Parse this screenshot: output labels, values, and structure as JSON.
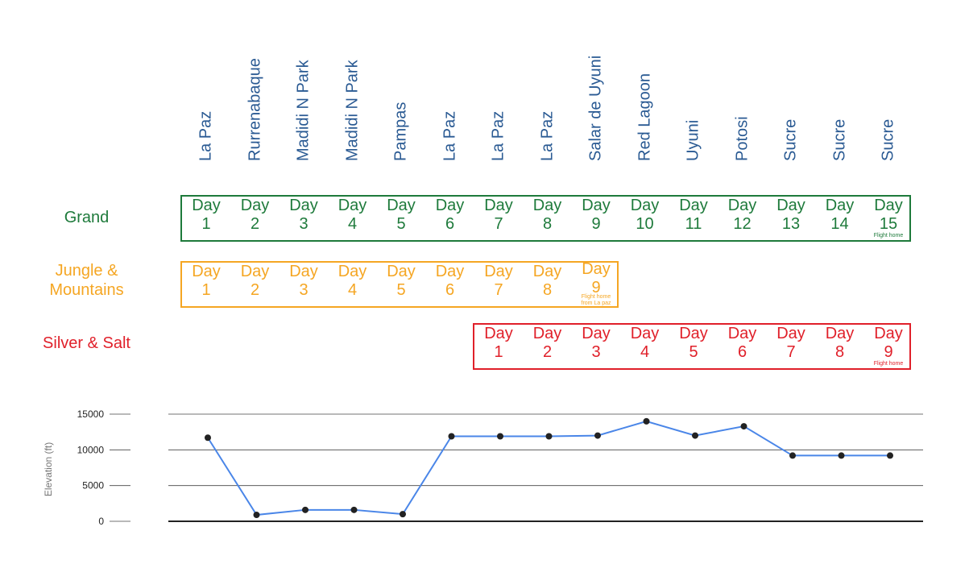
{
  "locations": [
    "La Paz",
    "Rurrenabaque",
    "Madidi N Park",
    "Madidi N Park",
    "Pampas",
    "La Paz",
    "La Paz",
    "La Paz",
    "Salar de Uyuni",
    "Red Lagoon",
    "Uyuni",
    "Potosi",
    "Sucre",
    "Sucre",
    "Sucre"
  ],
  "day_word": "Day",
  "plans": [
    {
      "name": "Grand",
      "color": "#1e7a3b",
      "start_column": 1,
      "days": [
        1,
        2,
        3,
        4,
        5,
        6,
        7,
        8,
        9,
        10,
        11,
        12,
        13,
        14,
        15
      ],
      "note": "Flight home"
    },
    {
      "name": "Jungle & Mountains",
      "color": "#f5a623",
      "start_column": 1,
      "days": [
        1,
        2,
        3,
        4,
        5,
        6,
        7,
        8,
        9
      ],
      "note": "Flight home from La paz"
    },
    {
      "name": "Silver & Salt",
      "color": "#e0202a",
      "start_column": 7,
      "days": [
        1,
        2,
        3,
        4,
        5,
        6,
        7,
        8,
        9
      ],
      "note": "Flight home"
    }
  ],
  "chart_data": {
    "type": "line",
    "ylabel": "Elevation (ft)",
    "yticks": [
      0,
      5000,
      10000,
      15000
    ],
    "ylim": [
      0,
      15000
    ],
    "grid": true,
    "line_color": "#4a86e8",
    "marker_color": "#222222",
    "categories": [
      "La Paz",
      "Rurrenabaque",
      "Madidi N Park",
      "Madidi N Park",
      "Pampas",
      "La Paz",
      "La Paz",
      "La Paz",
      "Salar de Uyuni",
      "Red Lagoon",
      "Uyuni",
      "Potosi",
      "Sucre",
      "Sucre",
      "Sucre"
    ],
    "values": [
      11700,
      900,
      1600,
      1600,
      1000,
      11900,
      11900,
      11900,
      12000,
      14000,
      12000,
      13300,
      9200,
      9200,
      9200
    ]
  }
}
